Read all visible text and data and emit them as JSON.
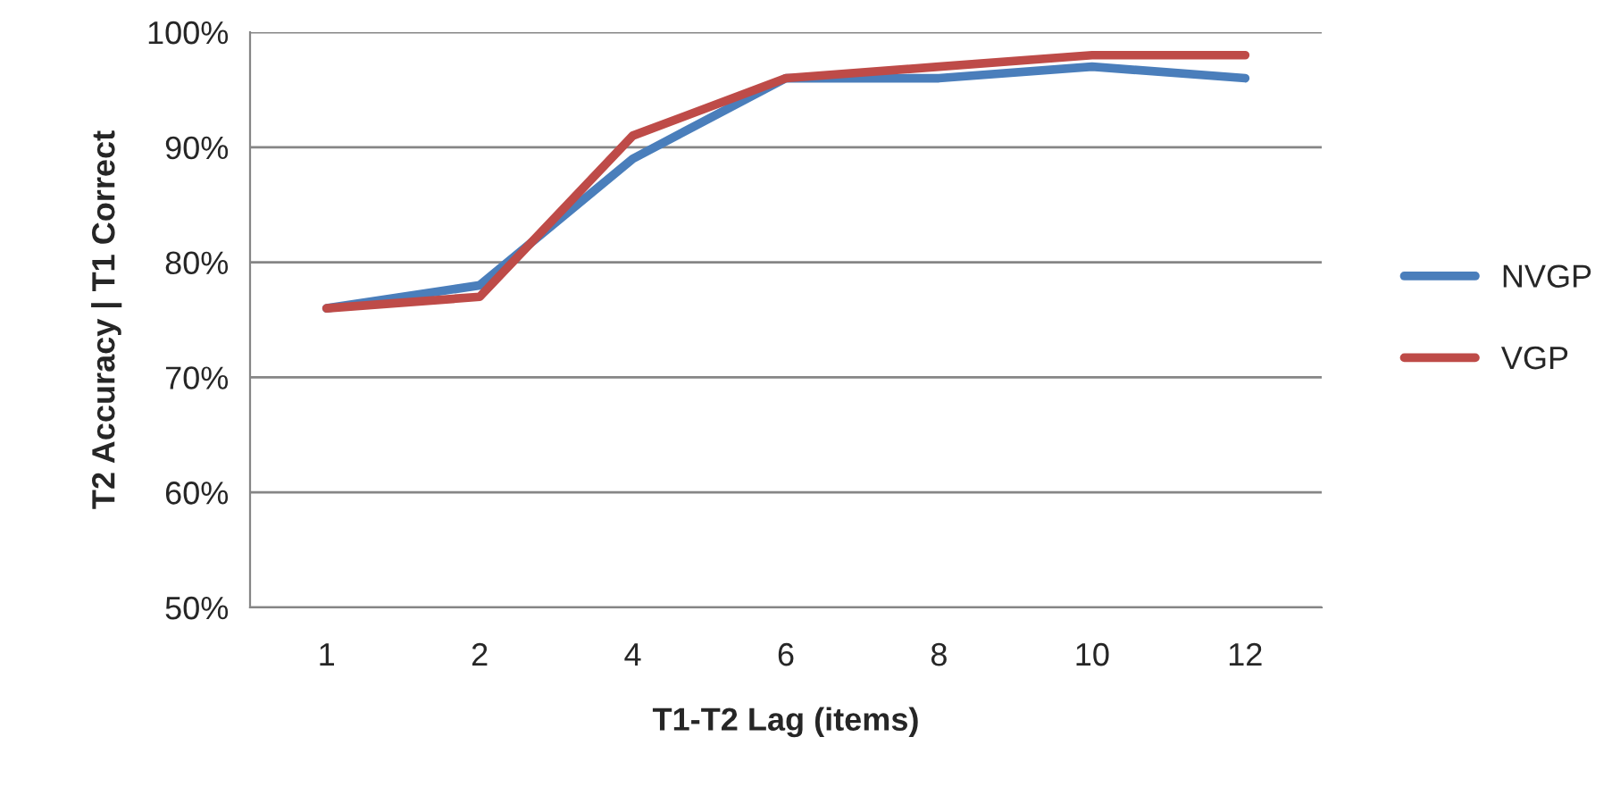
{
  "chart_data": {
    "type": "line",
    "xlabel": "T1-T2 Lag (items)",
    "ylabel": "T2 Accuracy | T1 Correct",
    "categories": [
      "1",
      "2",
      "4",
      "6",
      "8",
      "10",
      "12"
    ],
    "series": [
      {
        "name": "NVGP",
        "color": "#4a7ebb",
        "values": [
          76,
          78,
          89,
          96,
          96,
          97,
          96
        ]
      },
      {
        "name": "VGP",
        "color": "#be4b48",
        "values": [
          76,
          77,
          91,
          96,
          97,
          98,
          98
        ]
      }
    ],
    "ylim": [
      50,
      100
    ],
    "yticks": [
      {
        "value": 50,
        "label": "50%"
      },
      {
        "value": 60,
        "label": "60%"
      },
      {
        "value": 70,
        "label": "70%"
      },
      {
        "value": 80,
        "label": "80%"
      },
      {
        "value": 90,
        "label": "90%"
      },
      {
        "value": 100,
        "label": "100%"
      }
    ],
    "grid": "y",
    "legend": "right",
    "marker": "none",
    "line_style": "solid"
  }
}
